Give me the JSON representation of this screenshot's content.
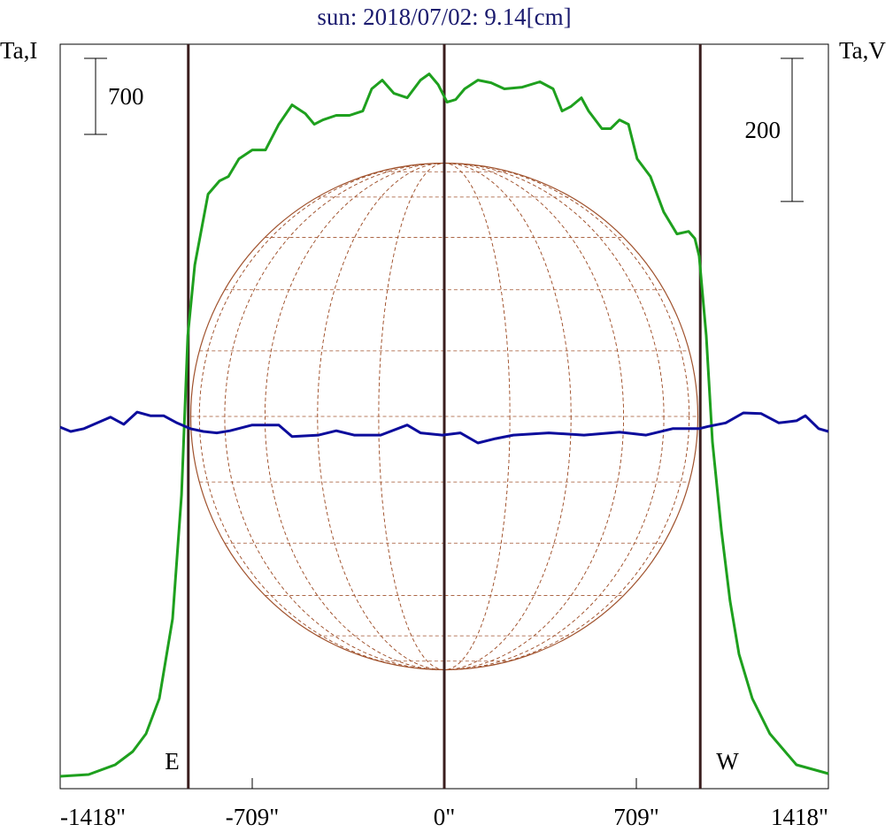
{
  "chart_data": {
    "type": "line",
    "title": "sun: 2018/07/02: 9.14[cm]",
    "ylabel": "Ta,I",
    "y2label": "Ta,V",
    "xlim": [
      -1418,
      1418
    ],
    "xticks": [
      {
        "value": -1418,
        "label": "-1418\""
      },
      {
        "value": -709,
        "label": "-709\""
      },
      {
        "value": 0,
        "label": "0\""
      },
      {
        "value": 709,
        "label": "709\""
      },
      {
        "value": 1418,
        "label": "1418\""
      }
    ],
    "ylim": [
      0,
      6850
    ],
    "y2lim": [
      -520,
      520
    ],
    "scale_bars": [
      {
        "axis": "y",
        "value": 700
      },
      {
        "axis": "y2",
        "value": 200
      }
    ],
    "vlines": [
      {
        "x": -945,
        "label": "E",
        "color": "#3a1e1e"
      },
      {
        "x": 0,
        "color": "#3a1e1e"
      },
      {
        "x": 945,
        "label": "W",
        "color": "#3a1e1e"
      }
    ],
    "disk_radius": 936,
    "disk_color": "#a0522d",
    "series": [
      {
        "name": "I",
        "color": "#1ea01e",
        "x": [
          -1418,
          -1313,
          -1215,
          -1150,
          -1101,
          -1052,
          -1003,
          -970,
          -947,
          -921,
          -872,
          -830,
          -797,
          -758,
          -709,
          -660,
          -611,
          -562,
          -513,
          -480,
          -448,
          -399,
          -350,
          -301,
          -268,
          -229,
          -186,
          -137,
          -88,
          -56,
          -23,
          10,
          42,
          75,
          124,
          173,
          222,
          288,
          353,
          402,
          435,
          467,
          506,
          533,
          582,
          614,
          647,
          680,
          712,
          761,
          810,
          859,
          902,
          925,
          941,
          967,
          990,
          1023,
          1055,
          1088,
          1137,
          1202,
          1300,
          1418
        ],
        "values": [
          114,
          130,
          220,
          342,
          505,
          830,
          1563,
          2702,
          4168,
          4819,
          5470,
          5592,
          5633,
          5796,
          5877,
          5877,
          6113,
          6292,
          6211,
          6113,
          6154,
          6195,
          6195,
          6235,
          6439,
          6520,
          6398,
          6357,
          6520,
          6577,
          6479,
          6317,
          6341,
          6439,
          6520,
          6495,
          6439,
          6455,
          6504,
          6439,
          6235,
          6276,
          6357,
          6235,
          6073,
          6073,
          6154,
          6113,
          5796,
          5633,
          5307,
          5104,
          5128,
          5063,
          4900,
          4168,
          3191,
          2377,
          1726,
          1238,
          830,
          505,
          220,
          138
        ]
      },
      {
        "name": "V",
        "color": "#0c0c9c",
        "axis": "y2",
        "x": [
          -1418,
          -1379,
          -1330,
          -1281,
          -1232,
          -1183,
          -1134,
          -1085,
          -1036,
          -987,
          -938,
          -889,
          -840,
          -791,
          -709,
          -611,
          -562,
          -464,
          -399,
          -333,
          -235,
          -137,
          -88,
          -7,
          59,
          124,
          189,
          255,
          386,
          516,
          647,
          745,
          843,
          941,
          974,
          1039,
          1104,
          1170,
          1235,
          1300,
          1333,
          1382,
          1418
        ],
        "values": [
          -15,
          -21,
          -17,
          -9,
          -1,
          -11,
          6,
          1,
          1,
          -9,
          -17,
          -21,
          -23,
          -20,
          -12,
          -12,
          -28,
          -26,
          -20,
          -26,
          -26,
          -12,
          -23,
          -26,
          -23,
          -37,
          -31,
          -26,
          -23,
          -26,
          -22,
          -26,
          -17,
          -17,
          -14,
          -9,
          5,
          4,
          -9,
          -6,
          1,
          -17,
          -21
        ]
      }
    ]
  }
}
